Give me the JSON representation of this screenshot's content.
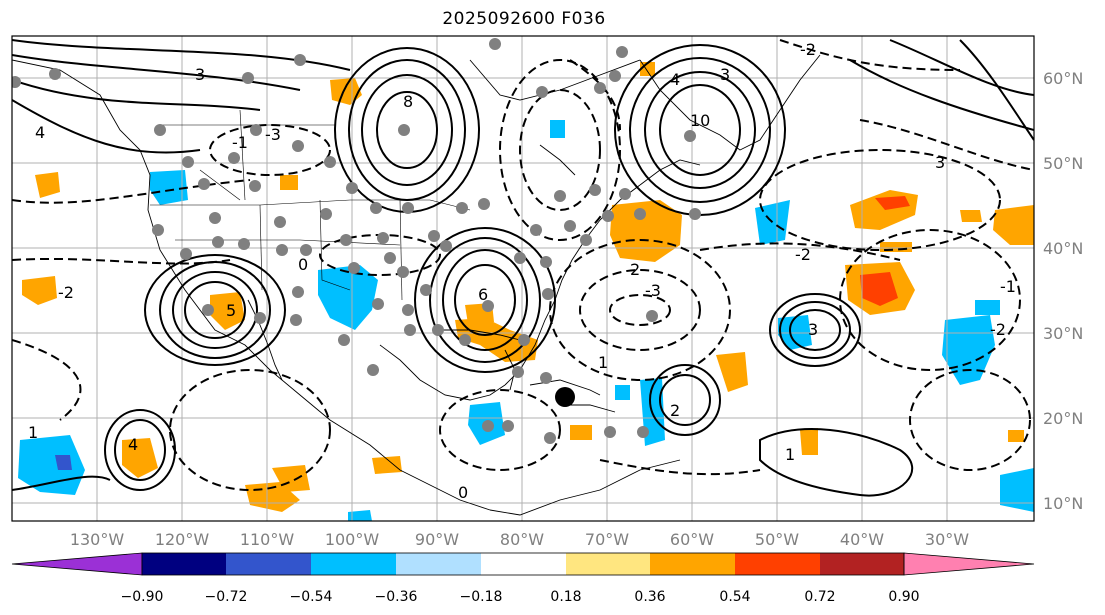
{
  "title": "2025092600 F036",
  "map": {
    "lon_labels": [
      "130°W",
      "120°W",
      "110°W",
      "100°W",
      "90°W",
      "80°W",
      "70°W",
      "60°W",
      "50°W",
      "40°W",
      "30°W"
    ],
    "lat_labels": [
      "60°N",
      "50°N",
      "40°N",
      "30°N",
      "20°N",
      "10°N"
    ],
    "lon_range": [
      -138,
      -17
    ],
    "lat_range": [
      7,
      65
    ]
  },
  "colorbar": {
    "ticks": [
      "−0.90",
      "−0.72",
      "−0.54",
      "−0.36",
      "−0.18",
      "0.18",
      "0.36",
      "0.54",
      "0.72",
      "0.90"
    ],
    "colors": [
      "#9b30d6",
      "#000080",
      "#3355cc",
      "#00bfff",
      "#b0e0ff",
      "#ffffff",
      "#ffe680",
      "#ffa500",
      "#ff4000",
      "#b22222",
      "#ff80b0"
    ]
  },
  "contour_labels": [
    "0",
    "1",
    "2",
    "3",
    "4",
    "5",
    "6",
    "8",
    "10",
    "-1",
    "-2",
    "-3"
  ]
}
